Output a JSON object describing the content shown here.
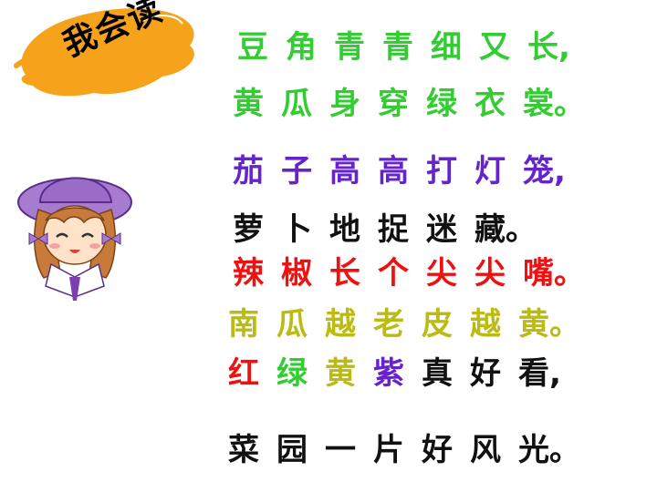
{
  "badge": {
    "text": "我会读"
  },
  "colors": {
    "green": "#33cc33",
    "purple": "#6622cc",
    "black": "#111111",
    "red": "#ee1111",
    "olive": "#bbbb11"
  },
  "poem": [
    {
      "chars": [
        "豆",
        "角",
        "青",
        "青",
        "细",
        "又",
        "长,"
      ],
      "colors": [
        "green",
        "green",
        "green",
        "green",
        "green",
        "green",
        "green"
      ]
    },
    {
      "chars": [
        "黄",
        "瓜",
        "身",
        "穿",
        "绿",
        "衣",
        "裳。"
      ],
      "colors": [
        "green",
        "green",
        "green",
        "green",
        "green",
        "green",
        "green"
      ]
    },
    {
      "chars": [
        "茄",
        "子",
        "高",
        "高",
        "打",
        "灯",
        "笼,"
      ],
      "colors": [
        "purple",
        "purple",
        "purple",
        "purple",
        "purple",
        "purple",
        "purple"
      ]
    },
    {
      "chars": [
        "萝",
        "卜",
        "地",
        "捉",
        "迷",
        "藏。"
      ],
      "colors": [
        "black",
        "black",
        "black",
        "black",
        "black",
        "black"
      ]
    },
    {
      "chars": [
        "辣",
        "椒",
        "长",
        "个",
        "尖",
        "尖",
        "嘴。"
      ],
      "colors": [
        "red",
        "red",
        "red",
        "red",
        "red",
        "red",
        "red"
      ]
    },
    {
      "chars": [
        "南",
        "瓜",
        "越",
        "老",
        "皮",
        "越",
        "黄。"
      ],
      "colors": [
        "olive",
        "olive",
        "olive",
        "olive",
        "olive",
        "olive",
        "olive"
      ]
    },
    {
      "chars": [
        "红",
        "绿",
        "黄",
        "紫",
        "真",
        "好",
        "看,"
      ],
      "colors": [
        "red",
        "green",
        "olive",
        "purple",
        "black",
        "black",
        "black"
      ]
    },
    {
      "chars": [
        "菜",
        "园",
        "一",
        "片",
        "好",
        "风",
        "光。"
      ],
      "colors": [
        "black",
        "black",
        "black",
        "black",
        "black",
        "black",
        "black"
      ]
    }
  ]
}
